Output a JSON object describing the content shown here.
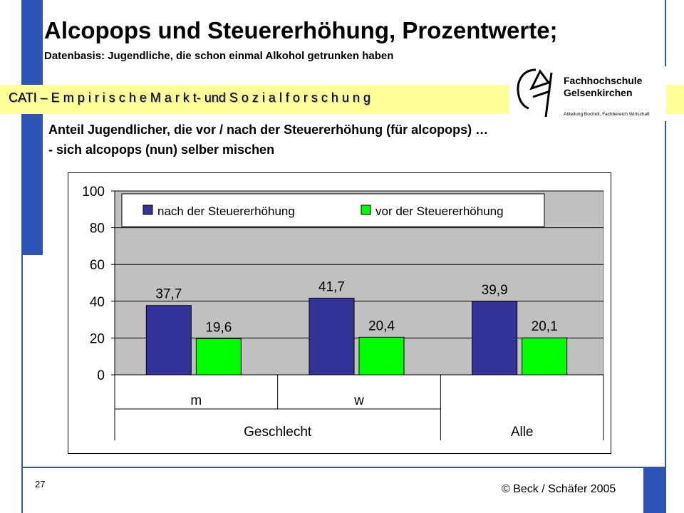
{
  "title": "Alcopops und Steuererhöhung, Prozentwerte;",
  "subtitle": "Datenbasis: Jugendliche, die schon einmal Alkohol getrunken haben",
  "band_text": "CATI – E m p i r i s c h e  M a r k t- und S o z i a l f o r s c h u n g",
  "logo": {
    "name_line1": "Fachhochschule",
    "name_line2": "Gelsenkirchen",
    "sub": "Abteilung Bocholt, Fachbereich Wirtschaft"
  },
  "description": {
    "line1": "Anteil Jugendlicher, die vor / nach der Steuererhöhung (für alcopops) …",
    "line2": "- sich alcopops (nun) selber mischen"
  },
  "chart_data": {
    "type": "bar",
    "categories": [
      "m",
      "w",
      "Alle"
    ],
    "group_labels": [
      {
        "label": "Geschlecht",
        "categories": [
          "m",
          "w"
        ]
      },
      {
        "label": "Alle",
        "categories": [
          "Alle"
        ]
      }
    ],
    "series": [
      {
        "name": "nach der Steuererhöhung",
        "values": [
          37.7,
          41.7,
          39.9
        ],
        "color": "#333399"
      },
      {
        "name": "vor der Steuererhöhung",
        "values": [
          19.6,
          20.4,
          20.1
        ],
        "color": "#00ff00"
      }
    ],
    "value_labels": [
      [
        "37,7",
        "41,7",
        "39,9"
      ],
      [
        "19,6",
        "20,4",
        "20,1"
      ]
    ],
    "ylim": [
      0,
      100
    ],
    "yticks": [
      "0",
      "20",
      "40",
      "60",
      "80",
      "100"
    ],
    "plot_background": "#c0c0c0",
    "grid": true,
    "legend_position": "top"
  },
  "footer": {
    "page_number": "27",
    "copyright": "© Beck / Schäfer 2005"
  }
}
